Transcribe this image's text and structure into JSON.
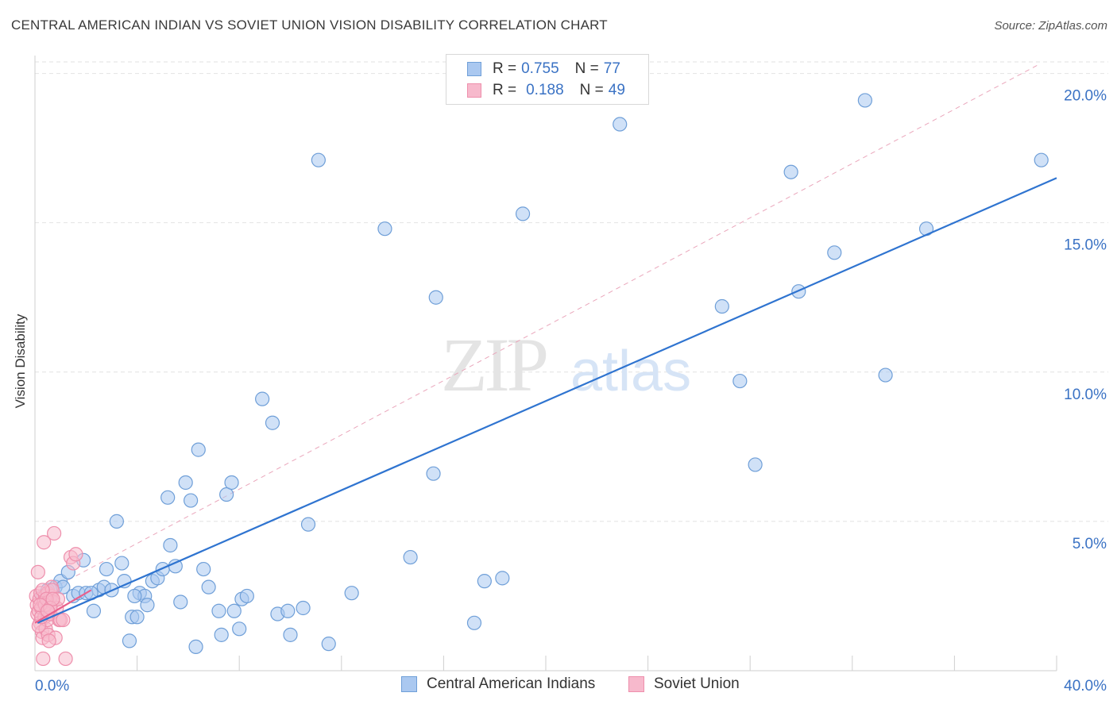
{
  "title": "CENTRAL AMERICAN INDIAN VS SOVIET UNION VISION DISABILITY CORRELATION CHART",
  "source": "Source: ZipAtlas.com",
  "legend": {
    "r_label": "R =",
    "n_label": "N =",
    "rows": [
      {
        "name": "Central American Indians",
        "r": "0.755",
        "n": "77"
      },
      {
        "name": "Soviet Union",
        "r": "0.188",
        "n": "49"
      }
    ]
  },
  "colors": {
    "blue_fill": "#aac8f0",
    "blue_stroke": "#6f9fd8",
    "blue_line": "#2f74d0",
    "pink_fill": "#f7b9cc",
    "pink_stroke": "#ee8fac",
    "pink_line": "#e8608c",
    "axis_text": "#3a72c4",
    "grid": "#e2e2e2"
  },
  "chart_data": {
    "type": "scatter",
    "title": "CENTRAL AMERICAN INDIAN VS SOVIET UNION VISION DISABILITY CORRELATION CHART",
    "xlabel": "",
    "ylabel": "Vision Disability",
    "xlim": [
      0,
      40
    ],
    "ylim": [
      0,
      20.6
    ],
    "x_tick_labels": [
      "0.0%",
      "40.0%"
    ],
    "y_ticks": [
      5,
      10,
      15,
      20
    ],
    "y_tick_labels": [
      "5.0%",
      "10.0%",
      "15.0%",
      "20.0%"
    ],
    "watermark": "ZIPatlas",
    "series": [
      {
        "name": "Central American Indians",
        "r": 0.755,
        "n": 77,
        "trend": {
          "x": [
            0.1,
            40.0
          ],
          "y": [
            1.6,
            16.5
          ]
        },
        "points": [
          [
            0.3,
            2.5
          ],
          [
            0.5,
            2.7
          ],
          [
            0.8,
            2.8
          ],
          [
            1.0,
            3.0
          ],
          [
            1.3,
            3.3
          ],
          [
            1.5,
            2.5
          ],
          [
            1.7,
            2.6
          ],
          [
            1.9,
            3.7
          ],
          [
            2.0,
            2.6
          ],
          [
            2.3,
            2.0
          ],
          [
            2.5,
            2.7
          ],
          [
            2.7,
            2.8
          ],
          [
            2.8,
            3.4
          ],
          [
            3.0,
            2.7
          ],
          [
            3.2,
            5.0
          ],
          [
            3.4,
            3.6
          ],
          [
            3.5,
            3.0
          ],
          [
            3.7,
            1.0
          ],
          [
            3.8,
            1.8
          ],
          [
            4.0,
            1.8
          ],
          [
            4.1,
            2.6
          ],
          [
            4.3,
            2.5
          ],
          [
            4.4,
            2.2
          ],
          [
            4.6,
            3.0
          ],
          [
            4.8,
            3.1
          ],
          [
            5.0,
            3.4
          ],
          [
            5.2,
            5.8
          ],
          [
            5.3,
            4.2
          ],
          [
            5.5,
            3.5
          ],
          [
            5.7,
            2.3
          ],
          [
            5.9,
            6.3
          ],
          [
            6.1,
            5.7
          ],
          [
            6.3,
            0.8
          ],
          [
            6.4,
            7.4
          ],
          [
            6.6,
            3.4
          ],
          [
            6.8,
            2.8
          ],
          [
            7.2,
            2.0
          ],
          [
            7.3,
            1.2
          ],
          [
            7.5,
            5.9
          ],
          [
            7.7,
            6.3
          ],
          [
            7.8,
            2.0
          ],
          [
            8.0,
            1.4
          ],
          [
            8.1,
            2.4
          ],
          [
            8.3,
            2.5
          ],
          [
            8.9,
            9.1
          ],
          [
            9.3,
            8.3
          ],
          [
            9.5,
            1.9
          ],
          [
            9.9,
            2.0
          ],
          [
            10.0,
            1.2
          ],
          [
            10.5,
            2.1
          ],
          [
            10.7,
            4.9
          ],
          [
            11.1,
            17.1
          ],
          [
            11.5,
            0.9
          ],
          [
            12.4,
            2.6
          ],
          [
            13.7,
            14.8
          ],
          [
            14.7,
            3.8
          ],
          [
            15.7,
            12.5
          ],
          [
            15.6,
            6.6
          ],
          [
            17.2,
            1.6
          ],
          [
            17.6,
            3.0
          ],
          [
            18.3,
            3.1
          ],
          [
            19.1,
            15.3
          ],
          [
            22.9,
            18.3
          ],
          [
            26.9,
            12.2
          ],
          [
            27.6,
            9.7
          ],
          [
            28.2,
            6.9
          ],
          [
            29.6,
            16.7
          ],
          [
            29.9,
            12.7
          ],
          [
            31.3,
            14.0
          ],
          [
            32.5,
            19.1
          ],
          [
            33.3,
            9.9
          ],
          [
            34.9,
            14.8
          ],
          [
            39.4,
            17.1
          ],
          [
            0.6,
            2.4
          ],
          [
            1.1,
            2.8
          ],
          [
            2.2,
            2.6
          ],
          [
            3.9,
            2.5
          ]
        ]
      },
      {
        "name": "Soviet Union",
        "r": 0.188,
        "n": 49,
        "trend": {
          "x": [
            0.0,
            2.2
          ],
          "y": [
            1.6,
            2.7
          ]
        },
        "points": [
          [
            0.05,
            2.5
          ],
          [
            0.08,
            2.2
          ],
          [
            0.1,
            1.9
          ],
          [
            0.12,
            3.3
          ],
          [
            0.15,
            2.0
          ],
          [
            0.18,
            2.4
          ],
          [
            0.2,
            1.6
          ],
          [
            0.22,
            2.6
          ],
          [
            0.25,
            2.1
          ],
          [
            0.28,
            1.3
          ],
          [
            0.3,
            1.1
          ],
          [
            0.32,
            0.4
          ],
          [
            0.35,
            2.3
          ],
          [
            0.38,
            1.8
          ],
          [
            0.4,
            2.5
          ],
          [
            0.42,
            1.4
          ],
          [
            0.45,
            2.0
          ],
          [
            0.48,
            1.7
          ],
          [
            0.5,
            2.6
          ],
          [
            0.52,
            1.2
          ],
          [
            0.55,
            2.2
          ],
          [
            0.58,
            2.4
          ],
          [
            0.6,
            1.9
          ],
          [
            0.62,
            2.5
          ],
          [
            0.65,
            2.8
          ],
          [
            0.68,
            2.7
          ],
          [
            0.7,
            2.3
          ],
          [
            0.75,
            4.6
          ],
          [
            0.8,
            1.1
          ],
          [
            0.85,
            2.1
          ],
          [
            0.9,
            2.4
          ],
          [
            0.95,
            1.7
          ],
          [
            1.0,
            1.7
          ],
          [
            1.1,
            1.7
          ],
          [
            1.2,
            0.4
          ],
          [
            1.4,
            3.8
          ],
          [
            1.5,
            3.6
          ],
          [
            1.6,
            3.9
          ],
          [
            0.35,
            4.3
          ],
          [
            0.15,
            1.5
          ],
          [
            0.25,
            1.8
          ],
          [
            0.4,
            2.2
          ],
          [
            0.55,
            1.0
          ],
          [
            0.3,
            2.7
          ],
          [
            0.45,
            2.4
          ],
          [
            0.2,
            2.2
          ],
          [
            0.6,
            2.1
          ],
          [
            0.7,
            2.4
          ],
          [
            0.5,
            2.0
          ]
        ]
      }
    ],
    "reference_line": {
      "style": "dashed",
      "x": [
        1.0,
        39.3
      ],
      "y": [
        2.9,
        20.3
      ]
    }
  }
}
